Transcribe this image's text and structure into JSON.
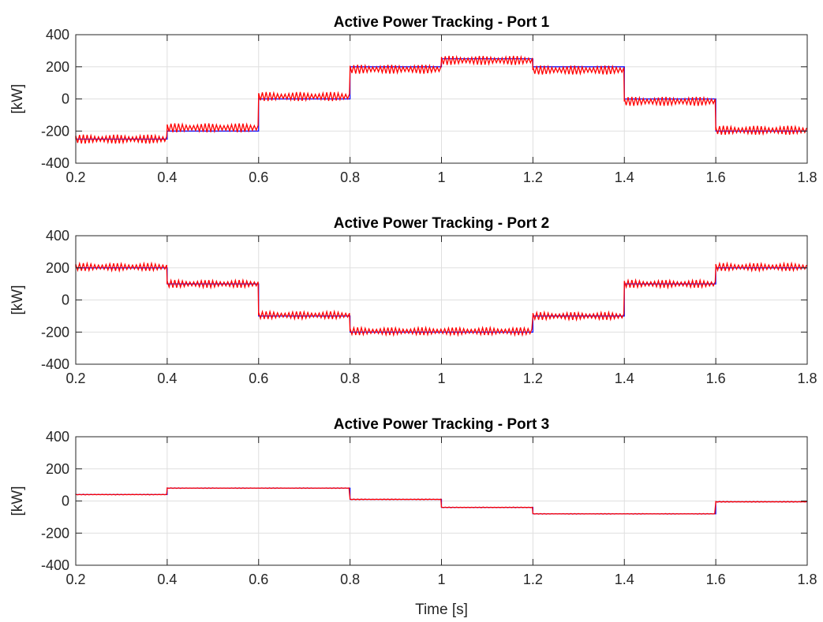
{
  "chart_data": [
    {
      "type": "line",
      "title": "Active Power Tracking - Port 1",
      "xlabel": "",
      "ylabel": "[kW]",
      "xlim": [
        0.2,
        1.8
      ],
      "ylim": [
        -400,
        400
      ],
      "xticks": [
        0.2,
        0.4,
        0.6,
        0.8,
        1,
        1.2,
        1.4,
        1.6,
        1.8
      ],
      "xtick_labels": [
        "0.2",
        "0.4",
        "0.6",
        "0.8",
        "1",
        "1.2",
        "1.4",
        "1.6",
        "1.8"
      ],
      "yticks": [
        -400,
        -200,
        0,
        200,
        400
      ],
      "ytick_labels": [
        "-400",
        "-200",
        "0",
        "200",
        "400"
      ],
      "grid": true,
      "series": [
        {
          "color": "#0000ff",
          "ripple": 0,
          "x": [
            0.2,
            0.4,
            0.6,
            0.8,
            1.0,
            1.2,
            1.4,
            1.6
          ],
          "values": [
            -250,
            -200,
            0,
            200,
            250,
            200,
            0,
            -200
          ]
        },
        {
          "color": "#ff0000",
          "ripple": 28,
          "x": [
            0.2,
            0.4,
            0.6,
            0.8,
            1.0,
            1.2,
            1.4,
            1.6
          ],
          "values": [
            -250,
            -180,
            15,
            185,
            240,
            180,
            -15,
            -195
          ]
        }
      ]
    },
    {
      "type": "line",
      "title": "Active Power Tracking - Port 2",
      "xlabel": "",
      "ylabel": "[kW]",
      "xlim": [
        0.2,
        1.8
      ],
      "ylim": [
        -400,
        400
      ],
      "xticks": [
        0.2,
        0.4,
        0.6,
        0.8,
        1,
        1.2,
        1.4,
        1.6,
        1.8
      ],
      "xtick_labels": [
        "0.2",
        "0.4",
        "0.6",
        "0.8",
        "1",
        "1.2",
        "1.4",
        "1.6",
        "1.8"
      ],
      "yticks": [
        -400,
        -200,
        0,
        200,
        400
      ],
      "ytick_labels": [
        "-400",
        "-200",
        "0",
        "200",
        "400"
      ],
      "grid": true,
      "series": [
        {
          "color": "#0000ff",
          "ripple": 0,
          "x": [
            0.2,
            0.4,
            0.6,
            0.8,
            1.2,
            1.4,
            1.6
          ],
          "values": [
            200,
            100,
            -100,
            -200,
            -100,
            100,
            200
          ]
        },
        {
          "color": "#ff0000",
          "ripple": 24,
          "x": [
            0.2,
            0.4,
            0.6,
            0.8,
            1.2,
            1.4,
            1.6
          ],
          "values": [
            205,
            100,
            -95,
            -195,
            -100,
            100,
            205
          ]
        }
      ]
    },
    {
      "type": "line",
      "title": "Active Power Tracking - Port 3",
      "xlabel": "Time [s]",
      "ylabel": "[kW]",
      "xlim": [
        0.2,
        1.8
      ],
      "ylim": [
        -400,
        400
      ],
      "xticks": [
        0.2,
        0.4,
        0.6,
        0.8,
        1,
        1.2,
        1.4,
        1.6,
        1.8
      ],
      "xtick_labels": [
        "0.2",
        "0.4",
        "0.6",
        "0.8",
        "1",
        "1.2",
        "1.4",
        "1.6",
        "1.8"
      ],
      "yticks": [
        -400,
        -200,
        0,
        200,
        400
      ],
      "ytick_labels": [
        "-400",
        "-200",
        "0",
        "200",
        "400"
      ],
      "grid": true,
      "series": [
        {
          "color": "#0000ff",
          "ripple": 0,
          "x": [
            0.2,
            0.4,
            0.8,
            1.0,
            1.2,
            1.6
          ],
          "values": [
            40,
            80,
            10,
            -40,
            -80,
            -5
          ]
        },
        {
          "color": "#ff0000",
          "ripple": 2,
          "x": [
            0.2,
            0.4,
            0.8,
            1.0,
            1.2,
            1.6
          ],
          "values": [
            40,
            80,
            10,
            -40,
            -80,
            -5
          ]
        }
      ]
    }
  ]
}
